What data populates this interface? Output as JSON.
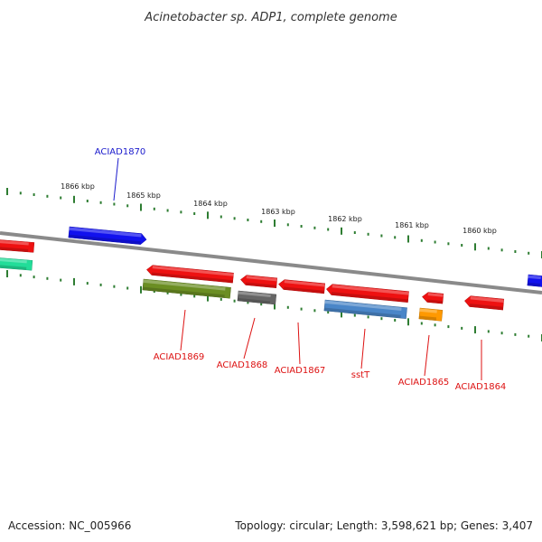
{
  "title": "Acinetobacter sp. ADP1, complete genome",
  "footer": {
    "accession": "Accession: NC_005966",
    "topology": "Topology: circular; Length: 3,598,621 bp; Genes: 3,407"
  },
  "colors": {
    "backbone": "#8a8a8a",
    "tick": "#2e7d32",
    "label_forward": "#1a1acc",
    "label_reverse": "#dd1111"
  },
  "scale_labels": [
    "1866 kbp",
    "1865 kbp",
    "1864 kbp",
    "1863 kbp",
    "1862 kbp",
    "1861 kbp",
    "1860 kbp"
  ],
  "gene_labels": [
    {
      "text": "ACIAD1870",
      "color": "#1a1acc"
    },
    {
      "text": "ACIAD1869",
      "color": "#dd1111"
    },
    {
      "text": "ACIAD1868",
      "color": "#dd1111"
    },
    {
      "text": "ACIAD1867",
      "color": "#dd1111"
    },
    {
      "text": "sstT",
      "color": "#dd1111"
    },
    {
      "text": "ACIAD1865",
      "color": "#dd1111"
    },
    {
      "text": "ACIAD1864",
      "color": "#dd1111"
    }
  ],
  "features": [
    {
      "name": "gene-edge-left-red",
      "color": "#ee1111"
    },
    {
      "name": "gene-edge-left-teal",
      "color": "#22dd99"
    },
    {
      "name": "gene-aciad1870",
      "color": "#1111ee"
    },
    {
      "name": "gene-aciad1869",
      "color": "#ee1111"
    },
    {
      "name": "cds-aciad1869",
      "color": "#6b8e23"
    },
    {
      "name": "gene-aciad1868",
      "color": "#ee1111"
    },
    {
      "name": "cds-aciad1868",
      "color": "#666666"
    },
    {
      "name": "gene-aciad1867",
      "color": "#ee1111"
    },
    {
      "name": "gene-ssst",
      "color": "#ee1111"
    },
    {
      "name": "cds-ssst",
      "color": "#4a86c8"
    },
    {
      "name": "gene-aciad1865",
      "color": "#ee1111"
    },
    {
      "name": "cds-aciad1865",
      "color": "#ff9900"
    },
    {
      "name": "gene-aciad1864",
      "color": "#ee1111"
    },
    {
      "name": "gene-edge-right-blue",
      "color": "#1111ee"
    }
  ]
}
